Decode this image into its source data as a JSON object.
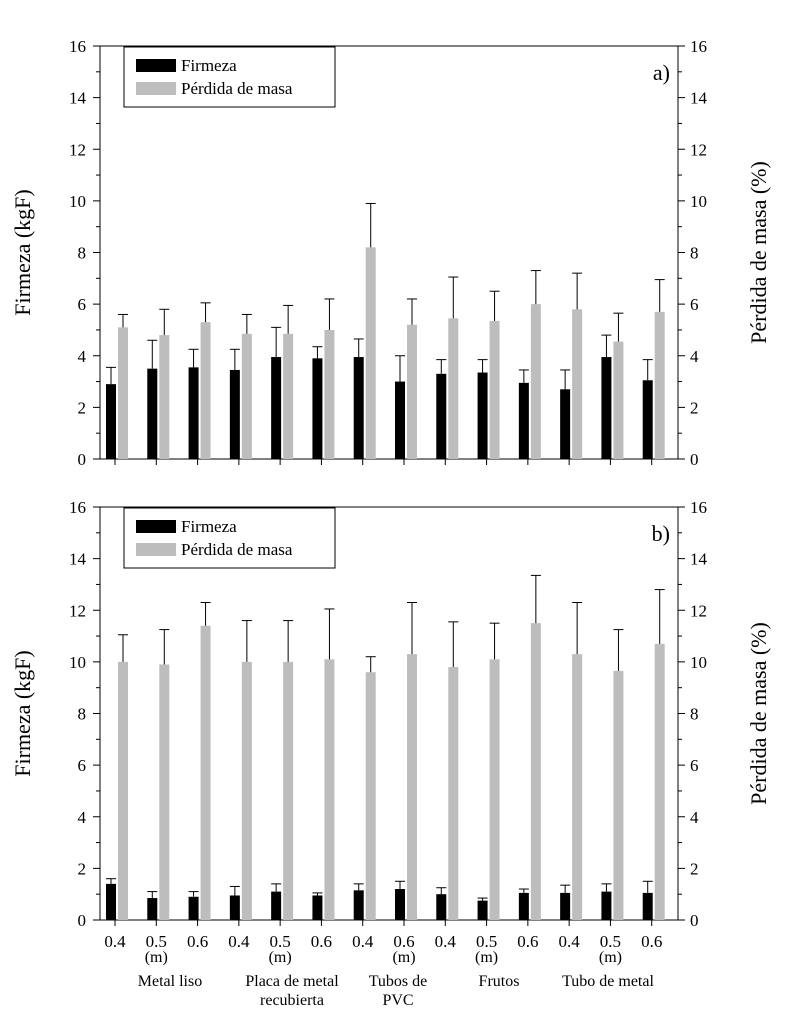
{
  "chart_data": [
    {
      "type": "bar",
      "panel_label": "a)",
      "ylabel_left": "Firmeza (kgF)",
      "ylabel_right": "Pérdida de masa (%)",
      "ylim": [
        0,
        16
      ],
      "yticks": [
        "0",
        "2",
        "4",
        "6",
        "8",
        "10",
        "12",
        "14",
        "16"
      ],
      "legend_position": "top-left",
      "series": [
        {
          "name": "Firmeza",
          "color": "#000000",
          "values": [
            2.9,
            3.5,
            3.55,
            3.45,
            3.95,
            3.9,
            3.95,
            3.0,
            3.3,
            3.35,
            2.95,
            2.7,
            3.95,
            3.05
          ],
          "errors": [
            0.65,
            1.1,
            0.7,
            0.8,
            1.15,
            0.45,
            0.7,
            1.0,
            0.55,
            0.5,
            0.5,
            0.75,
            0.85,
            0.8
          ]
        },
        {
          "name": "Pérdida de masa",
          "color": "#bdbdbd",
          "values": [
            5.1,
            4.8,
            5.3,
            4.85,
            4.85,
            5.0,
            8.2,
            5.2,
            5.45,
            5.35,
            6.0,
            5.8,
            4.55,
            5.7
          ],
          "errors": [
            0.5,
            1.0,
            0.75,
            0.75,
            1.1,
            1.2,
            1.7,
            1.0,
            1.6,
            1.15,
            1.3,
            1.4,
            1.1,
            1.25
          ]
        }
      ]
    },
    {
      "type": "bar",
      "panel_label": "b)",
      "ylabel_left": "Firmeza (kgF)",
      "ylabel_right": "Pérdida de masa (%)",
      "ylim": [
        0,
        16
      ],
      "yticks": [
        "0",
        "2",
        "4",
        "6",
        "8",
        "10",
        "12",
        "14",
        "16"
      ],
      "legend_position": "top-left",
      "series": [
        {
          "name": "Firmeza",
          "color": "#000000",
          "values": [
            1.4,
            0.85,
            0.9,
            0.95,
            1.1,
            0.95,
            1.15,
            1.2,
            1.0,
            0.75,
            1.05,
            1.05,
            1.1,
            1.05
          ],
          "errors": [
            0.2,
            0.25,
            0.2,
            0.35,
            0.3,
            0.1,
            0.25,
            0.3,
            0.25,
            0.1,
            0.15,
            0.3,
            0.3,
            0.45
          ]
        },
        {
          "name": "Pérdida de masa",
          "color": "#bdbdbd",
          "values": [
            10.0,
            9.9,
            11.4,
            10.0,
            10.0,
            10.1,
            9.6,
            10.3,
            9.8,
            10.1,
            11.5,
            10.3,
            9.65,
            10.7
          ],
          "errors": [
            1.05,
            1.35,
            0.9,
            1.6,
            1.6,
            1.95,
            0.6,
            2.0,
            1.75,
            1.4,
            1.85,
            2.0,
            1.6,
            2.1
          ]
        }
      ]
    }
  ],
  "x_axis": {
    "tick_labels": [
      "0.4",
      "0.5",
      "0.6",
      "0.4",
      "0.5",
      "0.6",
      "0.4",
      "0.6",
      "0.4",
      "0.5",
      "0.6",
      "0.4",
      "0.5",
      "0.6"
    ],
    "unit_label": "(m)",
    "groups": [
      {
        "lines": [
          "Metal liso"
        ]
      },
      {
        "lines": [
          "Placa de metal",
          "recubierta"
        ]
      },
      {
        "lines": [
          "Tubos de",
          "PVC"
        ]
      },
      {
        "lines": [
          "Frutos"
        ]
      },
      {
        "lines": [
          "Tubo de metal"
        ]
      }
    ]
  }
}
